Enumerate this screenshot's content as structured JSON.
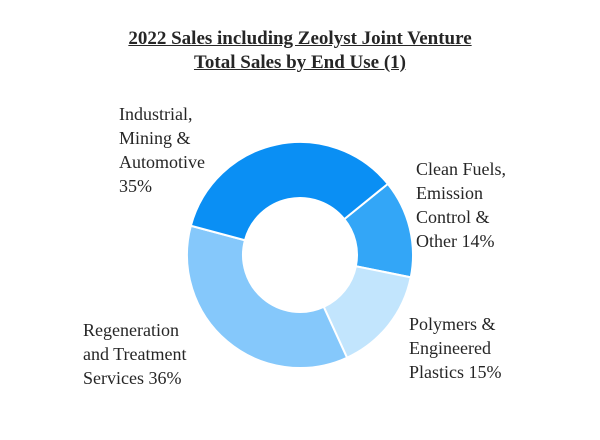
{
  "chart_data": {
    "type": "pie",
    "donut": true,
    "title": [
      "2022 Sales including Zeolyst Joint Venture",
      "Total Sales by End Use (1)"
    ],
    "slices": [
      {
        "label_lines": [
          "Clean Fuels,",
          "Emission",
          "Control &",
          "Other 14%"
        ],
        "value": 14,
        "color": "#33a6f7"
      },
      {
        "label_lines": [
          "Polymers &",
          "Engineered",
          "Plastics 15%"
        ],
        "value": 15,
        "color": "#c2e5fd"
      },
      {
        "label_lines": [
          "Regeneration",
          "and Treatment",
          "Services 36%"
        ],
        "value": 36,
        "color": "#85c8fb"
      },
      {
        "label_lines": [
          "Industrial,",
          "Mining &",
          "Automotive",
          "35%"
        ],
        "value": 35,
        "color": "#0a8ff4"
      }
    ],
    "start_clockwise_from": "upper-right"
  }
}
